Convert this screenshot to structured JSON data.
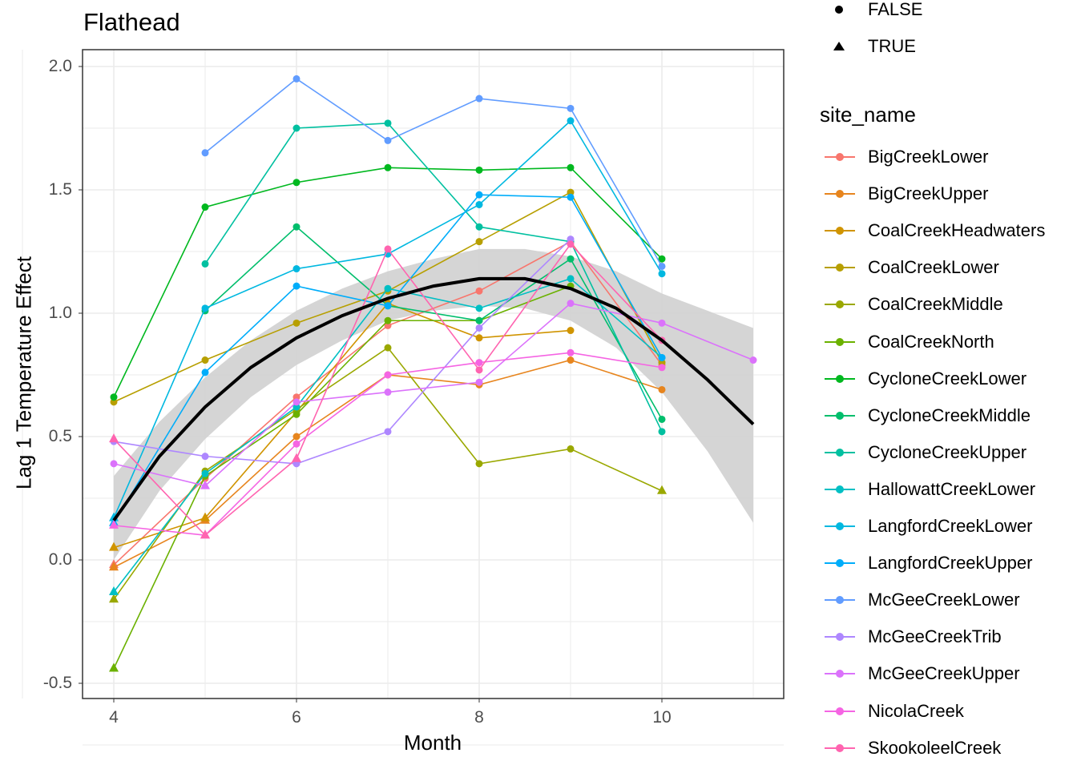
{
  "chart_data": {
    "type": "line",
    "title": "Flathead",
    "xlabel": "Month",
    "ylabel": "Lag 1 Temperature Effect",
    "xlim": [
      3.65,
      11.35
    ],
    "ylim": [
      -0.56,
      2.06
    ],
    "x_ticks": [
      "4",
      "6",
      "8",
      "10"
    ],
    "y_ticks": [
      "-0.5",
      "0.0",
      "0.5",
      "1.0",
      "1.5",
      "2.0"
    ],
    "grid": true,
    "legend_position": "right",
    "shape_legend": {
      "title": "",
      "entries": [
        {
          "label": "FALSE",
          "shape": "circle"
        },
        {
          "label": "TRUE",
          "shape": "triangle"
        }
      ]
    },
    "color_legend_title": "site_name",
    "series": [
      {
        "name": "BigCreekLower",
        "color": "#F8766D",
        "points": [
          [
            4,
            -0.02,
            true
          ],
          [
            5,
            0.33,
            false
          ],
          [
            6,
            0.66,
            false
          ],
          [
            7,
            0.95,
            false
          ],
          [
            8,
            1.09,
            false
          ],
          [
            9,
            1.29,
            false
          ],
          [
            10,
            0.79,
            false
          ]
        ]
      },
      {
        "name": "BigCreekUpper",
        "color": "#E7851E",
        "points": [
          [
            4,
            -0.03,
            true
          ],
          [
            5,
            0.16,
            true
          ],
          [
            6,
            0.5,
            false
          ],
          [
            7,
            0.75,
            false
          ],
          [
            8,
            0.71,
            false
          ],
          [
            9,
            0.81,
            false
          ],
          [
            10,
            0.69,
            false
          ]
        ]
      },
      {
        "name": "CoalCreekHeadwaters",
        "color": "#D09400",
        "points": [
          [
            4,
            0.05,
            true
          ],
          [
            5,
            0.17,
            true
          ],
          [
            6,
            0.6,
            false
          ],
          [
            7,
            1.04,
            false
          ],
          [
            8,
            0.9,
            false
          ],
          [
            9,
            0.93,
            false
          ]
        ]
      },
      {
        "name": "CoalCreekLower",
        "color": "#B79F00",
        "points": [
          [
            4,
            0.64,
            false
          ],
          [
            5,
            0.81,
            false
          ],
          [
            6,
            0.96,
            false
          ],
          [
            7,
            1.09,
            false
          ],
          [
            8,
            1.29,
            false
          ],
          [
            9,
            1.49,
            false
          ],
          [
            10,
            0.8,
            false
          ]
        ]
      },
      {
        "name": "CoalCreekMiddle",
        "color": "#9AA800",
        "points": [
          [
            4,
            -0.16,
            true
          ],
          [
            5,
            0.36,
            false
          ],
          [
            6,
            0.61,
            false
          ],
          [
            7,
            0.86,
            false
          ],
          [
            8,
            0.39,
            false
          ],
          [
            9,
            0.45,
            false
          ],
          [
            10,
            0.28,
            true
          ]
        ]
      },
      {
        "name": "CoalCreekNorth",
        "color": "#6BB100",
        "points": [
          [
            4,
            -0.44,
            true
          ],
          [
            5,
            0.34,
            false
          ],
          [
            6,
            0.59,
            false
          ],
          [
            7,
            0.97,
            false
          ],
          [
            8,
            0.97,
            false
          ],
          [
            9,
            1.11,
            false
          ]
        ]
      },
      {
        "name": "CycloneCreekLower",
        "color": "#00B81F",
        "points": [
          [
            4,
            0.66,
            false
          ],
          [
            5,
            1.43,
            false
          ],
          [
            6,
            1.53,
            false
          ],
          [
            7,
            1.59,
            false
          ],
          [
            8,
            1.58,
            false
          ],
          [
            9,
            1.59,
            false
          ],
          [
            10,
            1.22,
            false
          ]
        ]
      },
      {
        "name": "CycloneCreekMiddle",
        "color": "#00BE6C",
        "points": [
          [
            5,
            1.01,
            false
          ],
          [
            6,
            1.35,
            false
          ],
          [
            7,
            1.03,
            false
          ],
          [
            8,
            0.97,
            false
          ],
          [
            9,
            1.22,
            false
          ],
          [
            10,
            0.57,
            false
          ]
        ]
      },
      {
        "name": "CycloneCreekUpper",
        "color": "#00C0A0",
        "points": [
          [
            5,
            1.2,
            false
          ],
          [
            6,
            1.75,
            false
          ],
          [
            7,
            1.77,
            false
          ],
          [
            8,
            1.35,
            false
          ],
          [
            9,
            1.29,
            false
          ],
          [
            10,
            0.52,
            false
          ]
        ]
      },
      {
        "name": "HallowattCreekLower",
        "color": "#00BFC4",
        "points": [
          [
            4,
            -0.13,
            true
          ],
          [
            5,
            0.35,
            false
          ],
          [
            6,
            0.62,
            false
          ],
          [
            7,
            1.1,
            false
          ],
          [
            8,
            1.02,
            false
          ],
          [
            9,
            1.14,
            false
          ],
          [
            10,
            0.82,
            false
          ]
        ]
      },
      {
        "name": "LangfordCreekLower",
        "color": "#00B8E0",
        "points": [
          [
            4,
            0.17,
            true
          ],
          [
            5,
            1.02,
            false
          ],
          [
            6,
            1.18,
            false
          ],
          [
            7,
            1.24,
            false
          ],
          [
            8,
            1.44,
            false
          ],
          [
            9,
            1.78,
            false
          ],
          [
            10,
            1.16,
            false
          ]
        ]
      },
      {
        "name": "LangfordCreekUpper",
        "color": "#00ADFA",
        "points": [
          [
            4,
            0.15,
            true
          ],
          [
            5,
            0.76,
            false
          ],
          [
            6,
            1.11,
            false
          ],
          [
            7,
            1.03,
            false
          ],
          [
            8,
            1.48,
            false
          ],
          [
            9,
            1.47,
            false
          ],
          [
            10,
            0.82,
            false
          ]
        ]
      },
      {
        "name": "McGeeCreekLower",
        "color": "#619CFF",
        "points": [
          [
            5,
            1.65,
            false
          ],
          [
            6,
            1.95,
            false
          ],
          [
            7,
            1.7,
            false
          ],
          [
            8,
            1.87,
            false
          ],
          [
            9,
            1.83,
            false
          ],
          [
            10,
            1.19,
            false
          ]
        ]
      },
      {
        "name": "McGeeCreekTrib",
        "color": "#AE87FF",
        "points": [
          [
            4,
            0.48,
            false
          ],
          [
            5,
            0.42,
            false
          ],
          [
            6,
            0.39,
            false
          ],
          [
            7,
            0.52,
            false
          ],
          [
            8,
            0.94,
            false
          ],
          [
            9,
            1.3,
            false
          ]
        ]
      },
      {
        "name": "McGeeCreekUpper",
        "color": "#DB72FB",
        "points": [
          [
            4,
            0.39,
            false
          ],
          [
            5,
            0.3,
            true
          ],
          [
            6,
            0.64,
            false
          ],
          [
            7,
            0.68,
            false
          ],
          [
            8,
            0.72,
            false
          ],
          [
            9,
            1.04,
            false
          ],
          [
            10,
            0.96,
            false
          ],
          [
            11,
            0.81,
            false
          ]
        ]
      },
      {
        "name": "NicolaCreek",
        "color": "#F564E3",
        "points": [
          [
            4,
            0.14,
            true
          ],
          [
            5,
            0.1,
            true
          ],
          [
            6,
            0.47,
            false
          ],
          [
            7,
            0.75,
            false
          ],
          [
            8,
            0.8,
            false
          ],
          [
            9,
            0.84,
            false
          ],
          [
            10,
            0.78,
            false
          ]
        ]
      },
      {
        "name": "SkookoleelCreek",
        "color": "#FF64B0",
        "points": [
          [
            4,
            0.49,
            true
          ],
          [
            5,
            0.1,
            true
          ],
          [
            6,
            0.41,
            true
          ],
          [
            7,
            1.26,
            false
          ],
          [
            8,
            0.77,
            false
          ],
          [
            9,
            1.28,
            false
          ],
          [
            10,
            0.89,
            false
          ]
        ]
      }
    ],
    "smooth": {
      "color": "#000000",
      "band_color": "#d3d3d3",
      "x": [
        4,
        4.5,
        5,
        5.5,
        6,
        6.5,
        7,
        7.5,
        8,
        8.5,
        9,
        9.5,
        10,
        10.5,
        11
      ],
      "fit": [
        0.16,
        0.42,
        0.62,
        0.78,
        0.9,
        0.99,
        1.06,
        1.11,
        1.14,
        1.14,
        1.1,
        1.02,
        0.89,
        0.73,
        0.55
      ],
      "lower": [
        0.0,
        0.28,
        0.49,
        0.66,
        0.79,
        0.89,
        0.97,
        1.01,
        1.03,
        1.02,
        0.97,
        0.86,
        0.68,
        0.44,
        0.15
      ],
      "upper": [
        0.34,
        0.56,
        0.74,
        0.89,
        1.01,
        1.1,
        1.17,
        1.22,
        1.26,
        1.26,
        1.23,
        1.17,
        1.08,
        1.01,
        0.94
      ]
    }
  }
}
